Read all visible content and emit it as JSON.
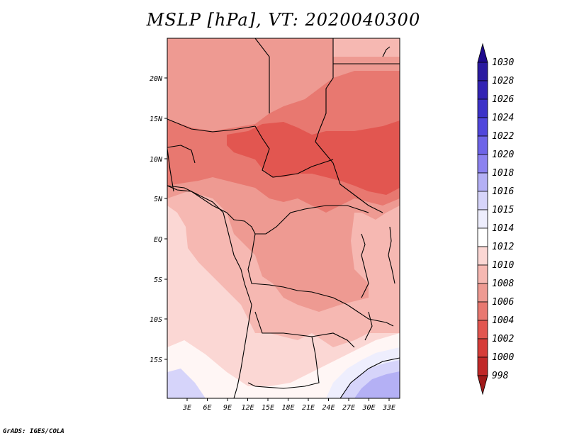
{
  "title": "MSLP [hPa], VT: 2020040300",
  "credit": "GrADS: IGES/COLA",
  "map": {
    "variable": "MSLP",
    "units": "hPa",
    "valid_time": "2020040300",
    "lat_labels": [
      "20N",
      "15N",
      "10N",
      "5N",
      "EQ",
      "5S",
      "10S",
      "15S"
    ],
    "lon_labels": [
      "3E",
      "6E",
      "9E",
      "12E",
      "15E",
      "18E",
      "21E",
      "24E",
      "27E",
      "30E",
      "33E"
    ]
  },
  "colorbar": {
    "labels": [
      "1030",
      "1028",
      "1026",
      "1024",
      "1022",
      "1020",
      "1018",
      "1016",
      "1015",
      "1014",
      "1012",
      "1010",
      "1008",
      "1006",
      "1004",
      "1002",
      "1000",
      "998"
    ],
    "colors": [
      "#1e0a8c",
      "#2a1aa0",
      "#3223b4",
      "#3c32c8",
      "#5046dc",
      "#6e64e8",
      "#8c82f0",
      "#b4b0f5",
      "#d6d4fa",
      "#eeeefd",
      "#ffffff",
      "#fbd7d4",
      "#f6b8b2",
      "#ee9a92",
      "#e87870",
      "#e25650",
      "#d63c38",
      "#c02828",
      "#a01a1a"
    ]
  },
  "fields": {
    "c1004": "#e25650",
    "c1006": "#e87870",
    "c1008": "#ee9a92",
    "c1010": "#f6b8b2",
    "c1012": "#fbd7d4",
    "c1014": "#fff6f5",
    "c1015": "#eeeefd",
    "c1016": "#d6d4fa",
    "c1018": "#b4b0f5",
    "c1020": "#8c82f0"
  }
}
